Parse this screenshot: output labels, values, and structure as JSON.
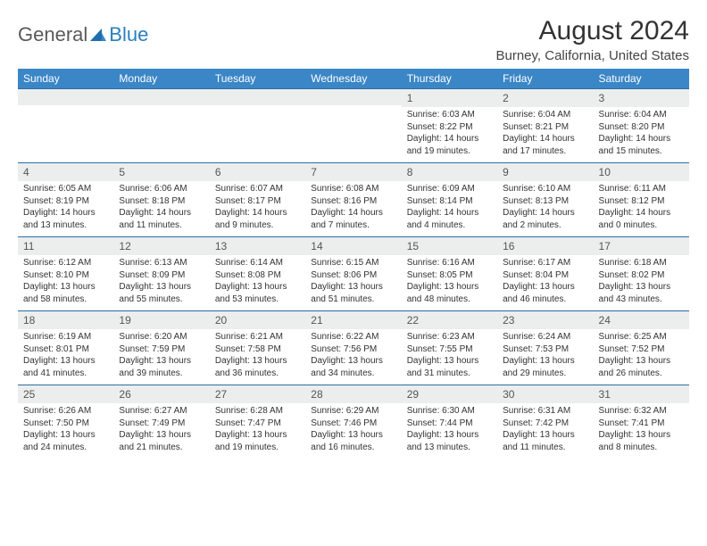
{
  "logo": {
    "general": "General",
    "blue": "Blue"
  },
  "header": {
    "month_title": "August 2024",
    "location": "Burney, California, United States"
  },
  "colors": {
    "header_bg": "#3b86c6",
    "header_text": "#ffffff",
    "daynum_bg": "#eceded",
    "row_border": "#2a6fa8",
    "text": "#333333",
    "logo_gray": "#5a5a5a",
    "logo_blue": "#2a7fbf"
  },
  "weekdays": [
    "Sunday",
    "Monday",
    "Tuesday",
    "Wednesday",
    "Thursday",
    "Friday",
    "Saturday"
  ],
  "weeks": [
    [
      {
        "num": "",
        "lines": []
      },
      {
        "num": "",
        "lines": []
      },
      {
        "num": "",
        "lines": []
      },
      {
        "num": "",
        "lines": []
      },
      {
        "num": "1",
        "lines": [
          "Sunrise: 6:03 AM",
          "Sunset: 8:22 PM",
          "Daylight: 14 hours",
          "and 19 minutes."
        ]
      },
      {
        "num": "2",
        "lines": [
          "Sunrise: 6:04 AM",
          "Sunset: 8:21 PM",
          "Daylight: 14 hours",
          "and 17 minutes."
        ]
      },
      {
        "num": "3",
        "lines": [
          "Sunrise: 6:04 AM",
          "Sunset: 8:20 PM",
          "Daylight: 14 hours",
          "and 15 minutes."
        ]
      }
    ],
    [
      {
        "num": "4",
        "lines": [
          "Sunrise: 6:05 AM",
          "Sunset: 8:19 PM",
          "Daylight: 14 hours",
          "and 13 minutes."
        ]
      },
      {
        "num": "5",
        "lines": [
          "Sunrise: 6:06 AM",
          "Sunset: 8:18 PM",
          "Daylight: 14 hours",
          "and 11 minutes."
        ]
      },
      {
        "num": "6",
        "lines": [
          "Sunrise: 6:07 AM",
          "Sunset: 8:17 PM",
          "Daylight: 14 hours",
          "and 9 minutes."
        ]
      },
      {
        "num": "7",
        "lines": [
          "Sunrise: 6:08 AM",
          "Sunset: 8:16 PM",
          "Daylight: 14 hours",
          "and 7 minutes."
        ]
      },
      {
        "num": "8",
        "lines": [
          "Sunrise: 6:09 AM",
          "Sunset: 8:14 PM",
          "Daylight: 14 hours",
          "and 4 minutes."
        ]
      },
      {
        "num": "9",
        "lines": [
          "Sunrise: 6:10 AM",
          "Sunset: 8:13 PM",
          "Daylight: 14 hours",
          "and 2 minutes."
        ]
      },
      {
        "num": "10",
        "lines": [
          "Sunrise: 6:11 AM",
          "Sunset: 8:12 PM",
          "Daylight: 14 hours",
          "and 0 minutes."
        ]
      }
    ],
    [
      {
        "num": "11",
        "lines": [
          "Sunrise: 6:12 AM",
          "Sunset: 8:10 PM",
          "Daylight: 13 hours",
          "and 58 minutes."
        ]
      },
      {
        "num": "12",
        "lines": [
          "Sunrise: 6:13 AM",
          "Sunset: 8:09 PM",
          "Daylight: 13 hours",
          "and 55 minutes."
        ]
      },
      {
        "num": "13",
        "lines": [
          "Sunrise: 6:14 AM",
          "Sunset: 8:08 PM",
          "Daylight: 13 hours",
          "and 53 minutes."
        ]
      },
      {
        "num": "14",
        "lines": [
          "Sunrise: 6:15 AM",
          "Sunset: 8:06 PM",
          "Daylight: 13 hours",
          "and 51 minutes."
        ]
      },
      {
        "num": "15",
        "lines": [
          "Sunrise: 6:16 AM",
          "Sunset: 8:05 PM",
          "Daylight: 13 hours",
          "and 48 minutes."
        ]
      },
      {
        "num": "16",
        "lines": [
          "Sunrise: 6:17 AM",
          "Sunset: 8:04 PM",
          "Daylight: 13 hours",
          "and 46 minutes."
        ]
      },
      {
        "num": "17",
        "lines": [
          "Sunrise: 6:18 AM",
          "Sunset: 8:02 PM",
          "Daylight: 13 hours",
          "and 43 minutes."
        ]
      }
    ],
    [
      {
        "num": "18",
        "lines": [
          "Sunrise: 6:19 AM",
          "Sunset: 8:01 PM",
          "Daylight: 13 hours",
          "and 41 minutes."
        ]
      },
      {
        "num": "19",
        "lines": [
          "Sunrise: 6:20 AM",
          "Sunset: 7:59 PM",
          "Daylight: 13 hours",
          "and 39 minutes."
        ]
      },
      {
        "num": "20",
        "lines": [
          "Sunrise: 6:21 AM",
          "Sunset: 7:58 PM",
          "Daylight: 13 hours",
          "and 36 minutes."
        ]
      },
      {
        "num": "21",
        "lines": [
          "Sunrise: 6:22 AM",
          "Sunset: 7:56 PM",
          "Daylight: 13 hours",
          "and 34 minutes."
        ]
      },
      {
        "num": "22",
        "lines": [
          "Sunrise: 6:23 AM",
          "Sunset: 7:55 PM",
          "Daylight: 13 hours",
          "and 31 minutes."
        ]
      },
      {
        "num": "23",
        "lines": [
          "Sunrise: 6:24 AM",
          "Sunset: 7:53 PM",
          "Daylight: 13 hours",
          "and 29 minutes."
        ]
      },
      {
        "num": "24",
        "lines": [
          "Sunrise: 6:25 AM",
          "Sunset: 7:52 PM",
          "Daylight: 13 hours",
          "and 26 minutes."
        ]
      }
    ],
    [
      {
        "num": "25",
        "lines": [
          "Sunrise: 6:26 AM",
          "Sunset: 7:50 PM",
          "Daylight: 13 hours",
          "and 24 minutes."
        ]
      },
      {
        "num": "26",
        "lines": [
          "Sunrise: 6:27 AM",
          "Sunset: 7:49 PM",
          "Daylight: 13 hours",
          "and 21 minutes."
        ]
      },
      {
        "num": "27",
        "lines": [
          "Sunrise: 6:28 AM",
          "Sunset: 7:47 PM",
          "Daylight: 13 hours",
          "and 19 minutes."
        ]
      },
      {
        "num": "28",
        "lines": [
          "Sunrise: 6:29 AM",
          "Sunset: 7:46 PM",
          "Daylight: 13 hours",
          "and 16 minutes."
        ]
      },
      {
        "num": "29",
        "lines": [
          "Sunrise: 6:30 AM",
          "Sunset: 7:44 PM",
          "Daylight: 13 hours",
          "and 13 minutes."
        ]
      },
      {
        "num": "30",
        "lines": [
          "Sunrise: 6:31 AM",
          "Sunset: 7:42 PM",
          "Daylight: 13 hours",
          "and 11 minutes."
        ]
      },
      {
        "num": "31",
        "lines": [
          "Sunrise: 6:32 AM",
          "Sunset: 7:41 PM",
          "Daylight: 13 hours",
          "and 8 minutes."
        ]
      }
    ]
  ]
}
